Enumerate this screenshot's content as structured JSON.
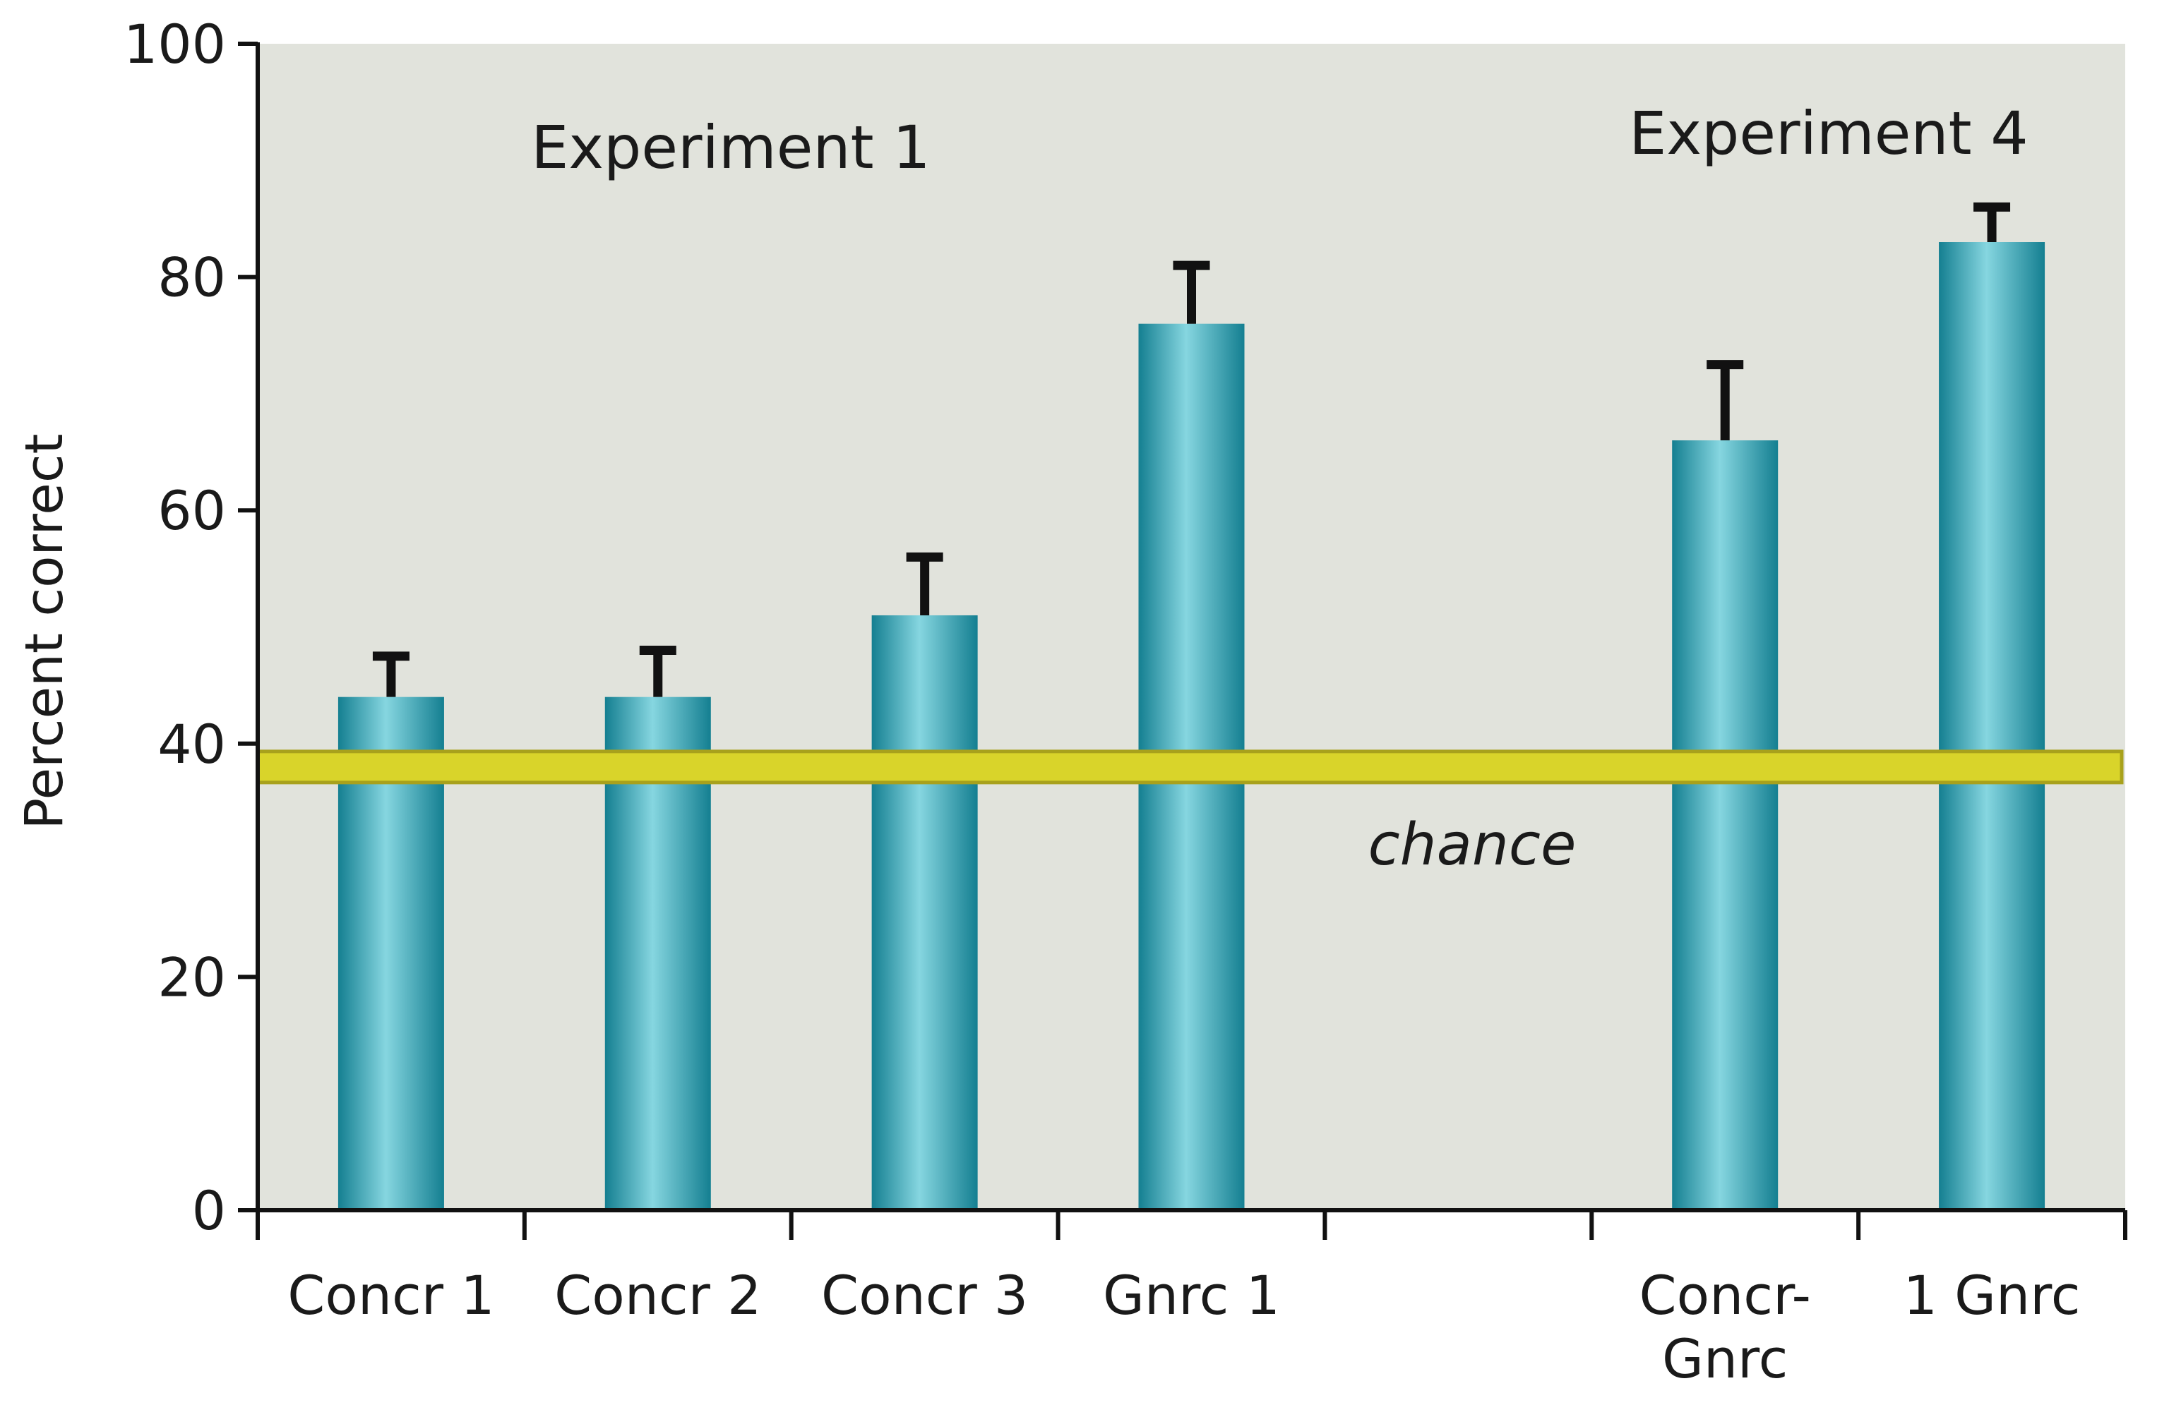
{
  "chart_data": {
    "type": "bar",
    "title": "",
    "xlabel": "",
    "ylabel": "Percent correct",
    "ylim": [
      0,
      100
    ],
    "yticks": [
      "0",
      "20",
      "40",
      "60",
      "80",
      "100"
    ],
    "grid": false,
    "groups": [
      {
        "label": "Experiment 1",
        "categories": [
          "Concr 1",
          "Concr 2",
          "Concr 3",
          "Gnrc 1"
        ]
      },
      {
        "label": "Experiment 4",
        "categories": [
          "Concr-Gnrc",
          "1 Gnrc"
        ]
      }
    ],
    "slots": [
      "Concr 1",
      "Concr 2",
      "Concr 3",
      "Gnrc 1",
      "",
      "Concr-Gnrc",
      "1 Gnrc"
    ],
    "categories": [
      "Concr 1",
      "Concr 2",
      "Concr 3",
      "Gnrc 1",
      "Concr-Gnrc",
      "1 Gnrc"
    ],
    "category_label_lines": [
      [
        "Concr 1"
      ],
      [
        "Concr 2"
      ],
      [
        "Concr 3"
      ],
      [
        "Gnrc 1"
      ],
      [
        "Concr-",
        "Gnrc"
      ],
      [
        "1 Gnrc"
      ]
    ],
    "values": [
      44,
      44,
      51,
      76,
      66,
      83
    ],
    "error_upper": [
      47.5,
      48,
      56,
      81,
      72.5,
      86
    ],
    "reference_line": {
      "label": "chance",
      "value": 38
    },
    "colors": {
      "plot_background": "#e1e3dc",
      "bar_dark": "#147f91",
      "bar_light": "#86d6e0",
      "error_bar": "#111111",
      "chance_line": "#d9d42a",
      "chance_line_edge": "#a8a11c",
      "axis": "#111111"
    }
  }
}
